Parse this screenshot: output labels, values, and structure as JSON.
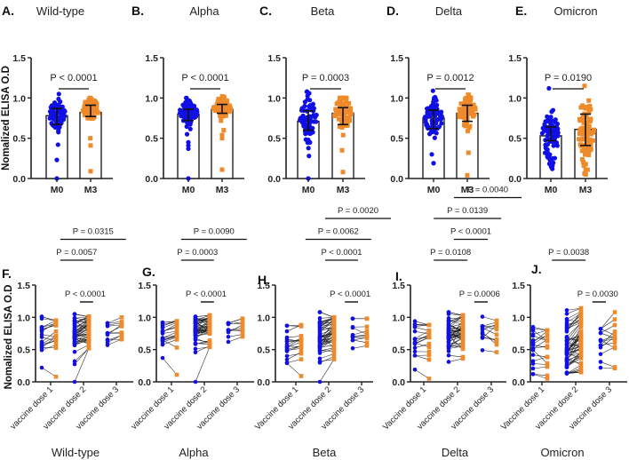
{
  "colors": {
    "m0": "#1010e6",
    "m3": "#ee8a2a",
    "axis": "#222222",
    "pair_line": "#222222"
  },
  "chart_data": [
    {
      "id": "A",
      "letter": "A.",
      "title": "Wild-type",
      "type": "scatter-bar",
      "ylabel": "Nomalized ELISA O.D",
      "ylim": [
        0,
        1.5
      ],
      "yticks": [
        "0.0",
        "0.5",
        "1.0",
        "1.5"
      ],
      "ytick_values": [
        0,
        0.5,
        1.0,
        1.5
      ],
      "categories": [
        "M0",
        "M3"
      ],
      "series": [
        {
          "name": "M0",
          "bar": 0.78,
          "err_low": 0.67,
          "err_high": 0.87,
          "n": 75,
          "center": 0.8,
          "spread": 0.09,
          "min": 0.42,
          "max": 1.05,
          "outliers": [
            0.0,
            0.23
          ]
        },
        {
          "name": "M3",
          "bar": 0.82,
          "err_low": 0.77,
          "err_high": 0.91,
          "n": 75,
          "center": 0.86,
          "spread": 0.07,
          "min": 0.5,
          "max": 1.0,
          "outliers": [
            0.09,
            0.41
          ]
        }
      ],
      "comparisons": [
        {
          "label": "P < 0.0001",
          "from": 0,
          "to": 1
        }
      ]
    },
    {
      "id": "B",
      "letter": "B.",
      "title": "Alpha",
      "type": "scatter-bar",
      "ylim": [
        0,
        1.5
      ],
      "yticks": [
        "0.0",
        "0.5",
        "1.0",
        "1.5"
      ],
      "ytick_values": [
        0,
        0.5,
        1.0,
        1.5
      ],
      "categories": [
        "M0",
        "M3"
      ],
      "series": [
        {
          "name": "M0",
          "bar": 0.8,
          "err_low": 0.72,
          "err_high": 0.86,
          "n": 75,
          "center": 0.82,
          "spread": 0.07,
          "min": 0.55,
          "max": 1.0,
          "outliers": [
            0.0,
            0.37,
            0.41,
            0.45
          ]
        },
        {
          "name": "M3",
          "bar": 0.86,
          "err_low": 0.81,
          "err_high": 0.92,
          "n": 75,
          "center": 0.88,
          "spread": 0.06,
          "min": 0.6,
          "max": 1.02,
          "outliers": [
            0.11,
            0.5,
            0.54
          ]
        }
      ],
      "comparisons": [
        {
          "label": "P < 0.0001",
          "from": 0,
          "to": 1
        }
      ]
    },
    {
      "id": "C",
      "letter": "C.",
      "title": "Beta",
      "type": "scatter-bar",
      "ylim": [
        0,
        1.5
      ],
      "yticks": [
        "0.0",
        "0.5",
        "1.0",
        "1.5"
      ],
      "ytick_values": [
        0,
        0.5,
        1.0,
        1.5
      ],
      "categories": [
        "M0",
        "M3"
      ],
      "series": [
        {
          "name": "M0",
          "bar": 0.71,
          "err_low": 0.6,
          "err_high": 0.84,
          "n": 75,
          "center": 0.74,
          "spread": 0.14,
          "min": 0.28,
          "max": 1.08,
          "outliers": [
            0.0
          ]
        },
        {
          "name": "M3",
          "bar": 0.81,
          "err_low": 0.67,
          "err_high": 0.88,
          "n": 75,
          "center": 0.82,
          "spread": 0.11,
          "min": 0.35,
          "max": 1.0,
          "outliers": [
            0.08
          ]
        }
      ],
      "comparisons": [
        {
          "label": "P = 0.0003",
          "from": 0,
          "to": 1
        }
      ]
    },
    {
      "id": "D",
      "letter": "D.",
      "title": "Delta",
      "type": "scatter-bar",
      "ylim": [
        0,
        1.5
      ],
      "yticks": [
        "0.0",
        "0.5",
        "1.0",
        "1.5"
      ],
      "ytick_values": [
        0,
        0.5,
        1.0,
        1.5
      ],
      "categories": [
        "M0",
        "M3"
      ],
      "series": [
        {
          "name": "M0",
          "bar": 0.75,
          "err_low": 0.62,
          "err_high": 0.85,
          "n": 75,
          "center": 0.76,
          "spread": 0.13,
          "min": 0.3,
          "max": 1.09,
          "outliers": [
            0.19
          ]
        },
        {
          "name": "M3",
          "bar": 0.81,
          "err_low": 0.71,
          "err_high": 0.91,
          "n": 75,
          "center": 0.83,
          "spread": 0.1,
          "min": 0.32,
          "max": 1.04,
          "outliers": [
            0.04
          ]
        }
      ],
      "comparisons": [
        {
          "label": "P = 0.0012",
          "from": 0,
          "to": 1
        }
      ]
    },
    {
      "id": "E",
      "letter": "E.",
      "title": "Omicron",
      "type": "scatter-bar",
      "ylim": [
        0,
        1.5
      ],
      "yticks": [
        "0.0",
        "0.5",
        "1.0",
        "1.5"
      ],
      "ytick_values": [
        0,
        0.5,
        1.0,
        1.5
      ],
      "categories": [
        "M0",
        "M3"
      ],
      "series": [
        {
          "name": "M0",
          "bar": 0.53,
          "err_low": 0.47,
          "err_high": 0.64,
          "n": 80,
          "center": 0.52,
          "spread": 0.18,
          "min": 0.12,
          "max": 1.12,
          "outliers": []
        },
        {
          "name": "M3",
          "bar": 0.61,
          "err_low": 0.41,
          "err_high": 0.8,
          "n": 80,
          "center": 0.6,
          "spread": 0.22,
          "min": 0.05,
          "max": 1.15,
          "outliers": []
        }
      ],
      "comparisons": [
        {
          "label": "P = 0.0190",
          "from": 0,
          "to": 1
        }
      ]
    },
    {
      "id": "F",
      "letter": "F.",
      "title": "Wild-type",
      "type": "paired-scatter",
      "ylabel": "Nomalized ELISA O.D",
      "ylim": [
        0,
        1.5
      ],
      "yticks": [
        "0.0",
        "0.5",
        "1.0",
        "1.5"
      ],
      "ytick_values": [
        0,
        0.5,
        1.0,
        1.5
      ],
      "categories": [
        "vaccine dose 1",
        "vaccine dose 2",
        "vaccine dose 3"
      ],
      "groups": [
        {
          "n": 18,
          "center": 0.7,
          "spread": 0.14,
          "min": 0.22,
          "max": 1.01,
          "shift": 0.05,
          "m3_min": 0.08,
          "m3_max": 0.95
        },
        {
          "n": 50,
          "center": 0.8,
          "spread": 0.15,
          "min": 0.0,
          "max": 1.05,
          "shift": 0.06,
          "m3_min": 0.52,
          "m3_max": 1.01
        },
        {
          "n": 12,
          "center": 0.8,
          "spread": 0.08,
          "min": 0.57,
          "max": 0.91,
          "shift": 0.05,
          "m3_min": 0.66,
          "m3_max": 1.0
        }
      ],
      "comparisons": [
        {
          "label": "P = 0.0315",
          "from": 0.4,
          "to": 2.4,
          "level": 3
        },
        {
          "label": "P = 0.0057",
          "from": 0.4,
          "to": 1.4,
          "level": 2
        },
        {
          "label": "P < 0.0001",
          "from": 1.0,
          "to": 1.4,
          "level": 0
        }
      ]
    },
    {
      "id": "G",
      "letter": "G.",
      "title": "Alpha",
      "type": "paired-scatter",
      "ylim": [
        0,
        1.5
      ],
      "yticks": [
        "0.0",
        "0.5",
        "1.0",
        "1.5"
      ],
      "ytick_values": [
        0,
        0.5,
        1.0,
        1.5
      ],
      "categories": [
        "vaccine dose 1",
        "vaccine dose 2",
        "vaccine dose 3"
      ],
      "groups": [
        {
          "n": 18,
          "center": 0.75,
          "spread": 0.12,
          "min": 0.37,
          "max": 0.92,
          "shift": 0.04,
          "m3_min": 0.11,
          "m3_max": 0.94
        },
        {
          "n": 50,
          "center": 0.82,
          "spread": 0.12,
          "min": 0.0,
          "max": 1.01,
          "shift": 0.05,
          "m3_min": 0.54,
          "m3_max": 1.03
        },
        {
          "n": 12,
          "center": 0.8,
          "spread": 0.07,
          "min": 0.62,
          "max": 0.91,
          "shift": 0.05,
          "m3_min": 0.7,
          "m3_max": 0.98
        }
      ],
      "comparisons": [
        {
          "label": "P = 0.0090",
          "from": 0.4,
          "to": 2.4,
          "level": 3
        },
        {
          "label": "P = 0.0003",
          "from": 0.4,
          "to": 1.4,
          "level": 2
        },
        {
          "label": "P < 0.0001",
          "from": 1.0,
          "to": 1.4,
          "level": 0
        }
      ]
    },
    {
      "id": "H",
      "letter": "H.",
      "title": "Beta",
      "type": "paired-scatter",
      "ylim": [
        0,
        1.5
      ],
      "yticks": [
        "0.0",
        "0.5",
        "1.0",
        "1.5"
      ],
      "ytick_values": [
        0,
        0.5,
        1.0,
        1.5
      ],
      "categories": [
        "Vaccine dose 1",
        "vaccine dose 2",
        "vaccine dose 3"
      ],
      "groups": [
        {
          "n": 18,
          "center": 0.6,
          "spread": 0.15,
          "min": 0.29,
          "max": 0.87,
          "shift": 0.05,
          "m3_min": 0.09,
          "m3_max": 0.88
        },
        {
          "n": 50,
          "center": 0.72,
          "spread": 0.18,
          "min": 0.0,
          "max": 1.08,
          "shift": 0.07,
          "m3_min": 0.35,
          "m3_max": 1.0
        },
        {
          "n": 12,
          "center": 0.78,
          "spread": 0.1,
          "min": 0.52,
          "max": 0.98,
          "shift": 0.03,
          "m3_min": 0.56,
          "m3_max": 0.98
        }
      ],
      "comparisons": [
        {
          "label": "P = 0.0020",
          "from": 1.0,
          "to": 3.0,
          "level": 4
        },
        {
          "label": "P = 0.0062",
          "from": 0.4,
          "to": 2.4,
          "level": 3
        },
        {
          "label": "P < 0.0001",
          "from": 1.0,
          "to": 2.0,
          "level": 2
        },
        {
          "label": "P < 0.0001",
          "from": 1.6,
          "to": 2.0,
          "level": 0
        }
      ]
    },
    {
      "id": "I",
      "letter": "I.",
      "title": "Delta",
      "type": "paired-scatter",
      "ylim": [
        0,
        1.5
      ],
      "yticks": [
        "0.0",
        "0.5",
        "1.0",
        "1.5"
      ],
      "ytick_values": [
        0,
        0.5,
        1.0,
        1.5
      ],
      "categories": [
        "Vaccine dose 1",
        "vaccine dose 2",
        "vaccine dose 3"
      ],
      "groups": [
        {
          "n": 18,
          "center": 0.62,
          "spread": 0.15,
          "min": 0.19,
          "max": 0.94,
          "shift": 0.05,
          "m3_min": 0.05,
          "m3_max": 0.88
        },
        {
          "n": 50,
          "center": 0.75,
          "spread": 0.18,
          "min": 0.31,
          "max": 1.08,
          "shift": 0.06,
          "m3_min": 0.36,
          "m3_max": 1.03
        },
        {
          "n": 12,
          "center": 0.76,
          "spread": 0.12,
          "min": 0.49,
          "max": 1.01,
          "shift": 0.02,
          "m3_min": 0.46,
          "m3_max": 0.95
        }
      ],
      "comparisons": [
        {
          "label": "P = 0.0040",
          "from": 1.0,
          "to": 3.0,
          "level": 5
        },
        {
          "label": "P = 0.0139",
          "from": 0.4,
          "to": 2.4,
          "level": 4
        },
        {
          "label": "P < 0.0001",
          "from": 1.0,
          "to": 2.0,
          "level": 3
        },
        {
          "label": "P = 0.0108",
          "from": 0.4,
          "to": 1.4,
          "level": 2
        },
        {
          "label": "P = 0.0006",
          "from": 1.6,
          "to": 2.0,
          "level": 0
        }
      ]
    },
    {
      "id": "J",
      "letter": "J.",
      "title": "Omicron",
      "type": "paired-scatter",
      "ylim": [
        0,
        1.5
      ],
      "yticks": [
        "0.0",
        "0.5",
        "1.0",
        "1.5"
      ],
      "ytick_values": [
        0,
        0.5,
        1.0,
        1.5
      ],
      "categories": [
        "Vaccine dose 1",
        "vaccine dose 2",
        "vaccine dose 3"
      ],
      "groups": [
        {
          "n": 18,
          "center": 0.45,
          "spread": 0.2,
          "min": 0.12,
          "max": 0.85,
          "shift": 0.03,
          "m3_min": 0.05,
          "m3_max": 0.8
        },
        {
          "n": 60,
          "center": 0.55,
          "spread": 0.24,
          "min": 0.13,
          "max": 1.11,
          "shift": 0.1,
          "m3_min": 0.15,
          "m3_max": 1.14
        },
        {
          "n": 14,
          "center": 0.62,
          "spread": 0.17,
          "min": 0.22,
          "max": 0.82,
          "shift": 0.03,
          "m3_min": 0.21,
          "m3_max": 1.08
        }
      ],
      "comparisons": [
        {
          "label": "P = 0.0038",
          "from": 0.4,
          "to": 1.4,
          "level": 2
        },
        {
          "label": "P = 0.0030",
          "from": 1.6,
          "to": 2.0,
          "level": 0
        }
      ]
    }
  ]
}
